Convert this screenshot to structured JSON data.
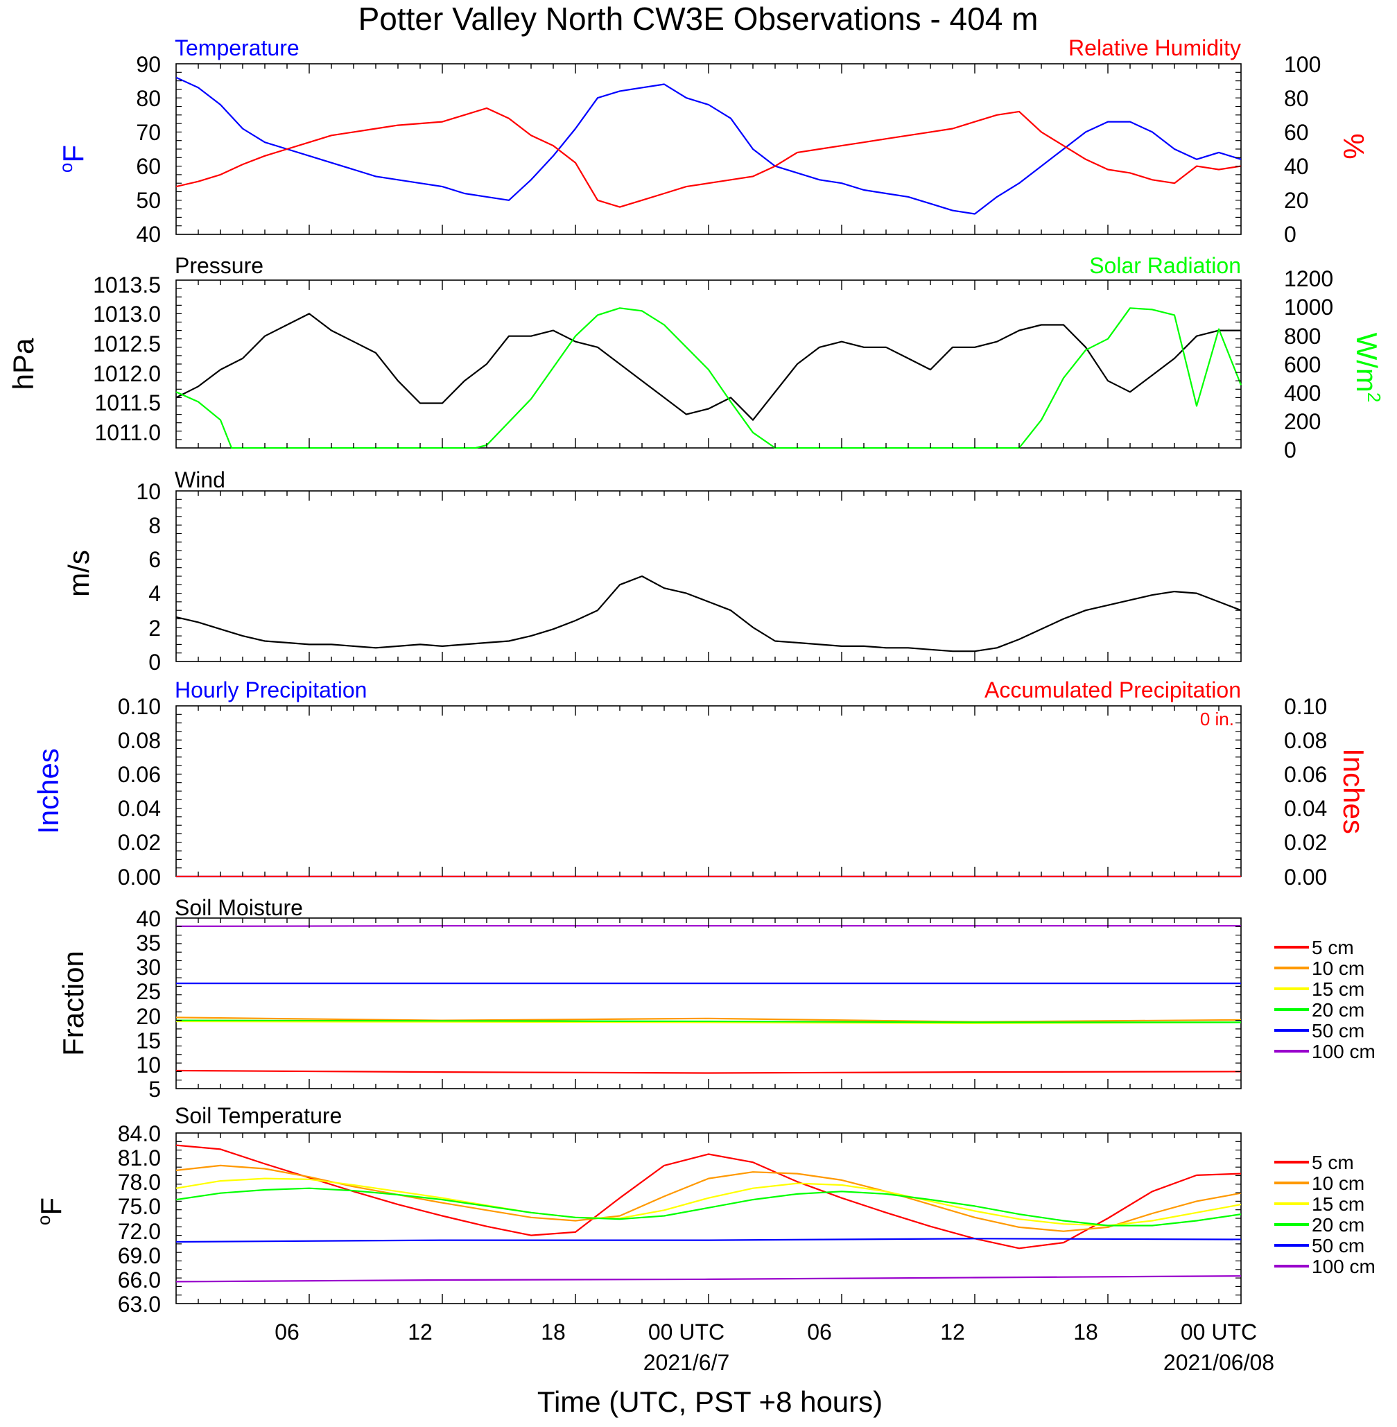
{
  "title": "Potter Valley North CW3E Observations - 404 m",
  "x_axis": {
    "title": "Time (UTC, PST +8 hours)",
    "range_hours": [
      0,
      48
    ],
    "tick_labels": [
      "06",
      "12",
      "18",
      "00 UTC",
      "06",
      "12",
      "18",
      "00 UTC"
    ],
    "date_labels": [
      "2021/6/7",
      "2021/06/08"
    ]
  },
  "colors": {
    "blue": "#0000ff",
    "red": "#ff0000",
    "green": "#00ff00",
    "black": "#000000",
    "orange": "#ff9900",
    "yellow": "#ffff00",
    "purple": "#9900cc"
  },
  "panels": {
    "temp_rh": {
      "left_title": "Temperature",
      "right_title": "Relative Humidity",
      "left_units": "oF",
      "right_units": "%",
      "left_ticks": [
        "90",
        "80",
        "70",
        "60",
        "50",
        "40"
      ],
      "right_ticks": [
        "100",
        "80",
        "60",
        "40",
        "20",
        "0"
      ]
    },
    "pressure": {
      "left_title": "Pressure",
      "right_title": "Solar Radiation",
      "left_units": "hPa",
      "right_units": "W/m2",
      "left_ticks": [
        "1013.5",
        "1013.0",
        "1012.5",
        "1012.0",
        "1011.5",
        "1011.0"
      ],
      "right_ticks": [
        "1200",
        "1000",
        "800",
        "600",
        "400",
        "200",
        "0"
      ]
    },
    "wind": {
      "left_title": "Wind",
      "left_units": "m/s",
      "left_ticks": [
        "10",
        "8",
        "6",
        "4",
        "2",
        "0"
      ]
    },
    "precip": {
      "left_title": "Hourly Precipitation",
      "right_title": "Accumulated Precipitation",
      "accum_label": "0 in.",
      "left_units": "Inches",
      "right_units": "Inches",
      "left_ticks": [
        "0.10",
        "0.08",
        "0.06",
        "0.04",
        "0.02",
        "0.00"
      ],
      "right_ticks": [
        "0.10",
        "0.08",
        "0.06",
        "0.04",
        "0.02",
        "0.00"
      ]
    },
    "soil_moisture": {
      "left_title": "Soil Moisture",
      "left_units": "Fraction",
      "left_ticks": [
        "40",
        "35",
        "30",
        "25",
        "20",
        "15",
        "10",
        "5"
      ]
    },
    "soil_temp": {
      "left_title": "Soil Temperature",
      "left_units": "oF",
      "left_ticks": [
        "84.0",
        "81.0",
        "78.0",
        "75.0",
        "72.0",
        "69.0",
        "66.0",
        "63.0"
      ]
    }
  },
  "chart_data": [
    {
      "type": "line",
      "title": "Temperature / Relative Humidity",
      "ylim_left": [
        40,
        90
      ],
      "ylim_right": [
        0,
        100
      ],
      "series": [
        {
          "name": "Temperature",
          "axis": "left",
          "color": "#0000ff",
          "x": [
            0,
            1,
            2,
            3,
            4,
            5,
            6,
            7,
            8,
            9,
            10,
            11,
            12,
            13,
            14,
            15,
            16,
            17,
            18,
            19,
            20,
            21,
            22,
            23,
            24,
            25,
            26,
            27,
            28,
            29,
            30,
            31,
            32,
            33,
            34,
            35,
            36,
            37,
            38,
            39,
            40,
            41,
            42,
            43,
            44,
            45,
            46,
            47,
            48
          ],
          "y": [
            86,
            83,
            78,
            71,
            67,
            65,
            63,
            61,
            59,
            57,
            56,
            55,
            54,
            52,
            51,
            50,
            56,
            63,
            71,
            80,
            82,
            83,
            84,
            80,
            78,
            74,
            65,
            60,
            58,
            56,
            55,
            53,
            52,
            51,
            49,
            47,
            46,
            51,
            55,
            60,
            65,
            70,
            73,
            73,
            70,
            65,
            62,
            64,
            62
          ]
        },
        {
          "name": "Relative Humidity",
          "axis": "right",
          "color": "#ff0000",
          "x": [
            0,
            1,
            2,
            3,
            4,
            5,
            6,
            7,
            8,
            9,
            10,
            11,
            12,
            13,
            14,
            15,
            16,
            17,
            18,
            19,
            20,
            21,
            22,
            23,
            24,
            25,
            26,
            27,
            28,
            29,
            30,
            31,
            32,
            33,
            34,
            35,
            36,
            37,
            38,
            39,
            40,
            41,
            42,
            43,
            44,
            45,
            46,
            47,
            48
          ],
          "y": [
            28,
            31,
            35,
            41,
            46,
            50,
            54,
            58,
            60,
            62,
            64,
            65,
            66,
            70,
            74,
            68,
            58,
            52,
            42,
            20,
            16,
            20,
            24,
            28,
            30,
            32,
            34,
            40,
            48,
            50,
            52,
            54,
            56,
            58,
            60,
            62,
            66,
            70,
            72,
            60,
            52,
            44,
            38,
            36,
            32,
            30,
            40,
            38,
            40
          ]
        }
      ]
    },
    {
      "type": "line",
      "title": "Pressure / Solar Radiation",
      "ylim_left": [
        1010.8,
        1013.8
      ],
      "ylim_right": [
        0,
        1200
      ],
      "series": [
        {
          "name": "Pressure",
          "axis": "left",
          "color": "#000000",
          "x": [
            0,
            1,
            2,
            3,
            4,
            5,
            6,
            7,
            8,
            9,
            10,
            11,
            12,
            13,
            14,
            15,
            16,
            17,
            18,
            19,
            20,
            21,
            22,
            23,
            24,
            25,
            26,
            27,
            28,
            29,
            30,
            31,
            32,
            33,
            34,
            35,
            36,
            37,
            38,
            39,
            40,
            41,
            42,
            43,
            44,
            45,
            46,
            47,
            48
          ],
          "y": [
            1011.7,
            1011.9,
            1012.2,
            1012.4,
            1012.8,
            1013.0,
            1013.2,
            1012.9,
            1012.7,
            1012.5,
            1012.0,
            1011.6,
            1011.6,
            1012.0,
            1012.3,
            1012.8,
            1012.8,
            1012.9,
            1012.7,
            1012.6,
            1012.3,
            1012.0,
            1011.7,
            1011.4,
            1011.5,
            1011.7,
            1011.3,
            1011.8,
            1012.3,
            1012.6,
            1012.7,
            1012.6,
            1012.6,
            1012.4,
            1012.2,
            1012.6,
            1012.6,
            1012.7,
            1012.9,
            1013.0,
            1013.0,
            1012.6,
            1012.0,
            1011.8,
            1012.1,
            1012.4,
            1012.8,
            1012.9,
            1012.9
          ]
        },
        {
          "name": "Solar Radiation",
          "axis": "right",
          "color": "#00ff00",
          "x": [
            0,
            1,
            2,
            2.5,
            13.5,
            14,
            16,
            18,
            19,
            20,
            21,
            22,
            24,
            25,
            26,
            27,
            38,
            39,
            40,
            41,
            42,
            43,
            44,
            45,
            46,
            47,
            48
          ],
          "y": [
            400,
            330,
            200,
            0,
            0,
            20,
            350,
            800,
            950,
            1000,
            980,
            880,
            560,
            330,
            110,
            0,
            0,
            200,
            500,
            700,
            780,
            1000,
            990,
            950,
            300,
            850,
            450
          ]
        }
      ]
    },
    {
      "type": "line",
      "title": "Wind",
      "ylim": [
        0,
        10
      ],
      "series": [
        {
          "name": "Wind speed",
          "color": "#000000",
          "x": [
            0,
            1,
            2,
            3,
            4,
            5,
            6,
            7,
            8,
            9,
            10,
            11,
            12,
            13,
            14,
            15,
            16,
            17,
            18,
            19,
            20,
            21,
            22,
            23,
            24,
            25,
            26,
            27,
            28,
            29,
            30,
            31,
            32,
            33,
            34,
            35,
            36,
            37,
            38,
            39,
            40,
            41,
            42,
            43,
            44,
            45,
            46,
            47,
            48
          ],
          "y": [
            2.6,
            2.3,
            1.9,
            1.5,
            1.2,
            1.1,
            1.0,
            1.0,
            0.9,
            0.8,
            0.9,
            1.0,
            0.9,
            1.0,
            1.1,
            1.2,
            1.5,
            1.9,
            2.4,
            3.0,
            4.5,
            5.0,
            4.3,
            4.0,
            3.5,
            3.0,
            2.0,
            1.2,
            1.1,
            1.0,
            0.9,
            0.9,
            0.8,
            0.8,
            0.7,
            0.6,
            0.6,
            0.8,
            1.3,
            1.9,
            2.5,
            3.0,
            3.3,
            3.6,
            3.9,
            4.1,
            4.0,
            3.5,
            3.0
          ]
        }
      ]
    },
    {
      "type": "line",
      "title": "Hourly / Accumulated Precipitation",
      "ylim": [
        0,
        0.1
      ],
      "series": [
        {
          "name": "Hourly Precipitation",
          "color": "#0000ff",
          "x": [
            0,
            48
          ],
          "y": [
            0,
            0
          ]
        },
        {
          "name": "Accumulated Precipitation",
          "color": "#ff0000",
          "x": [
            0,
            48
          ],
          "y": [
            0,
            0
          ]
        }
      ]
    },
    {
      "type": "line",
      "title": "Soil Moisture",
      "ylim": [
        5,
        40
      ],
      "series": [
        {
          "name": "5 cm",
          "color": "#ff0000",
          "x": [
            0,
            12,
            24,
            36,
            48
          ],
          "y": [
            8.7,
            8.4,
            8.2,
            8.4,
            8.5
          ]
        },
        {
          "name": "10 cm",
          "color": "#ff9900",
          "x": [
            0,
            12,
            24,
            36,
            48
          ],
          "y": [
            19.6,
            19.0,
            19.4,
            18.7,
            19.1
          ]
        },
        {
          "name": "15 cm",
          "color": "#ffff00",
          "x": [
            0,
            12,
            24,
            36,
            48
          ],
          "y": [
            18.8,
            18.7,
            18.6,
            18.4,
            18.6
          ]
        },
        {
          "name": "20 cm",
          "color": "#00ff00",
          "x": [
            0,
            12,
            24,
            36,
            48
          ],
          "y": [
            19.0,
            18.9,
            18.8,
            18.6,
            18.6
          ]
        },
        {
          "name": "50 cm",
          "color": "#0000ff",
          "x": [
            0,
            12,
            24,
            36,
            48
          ],
          "y": [
            26.6,
            26.6,
            26.6,
            26.6,
            26.6
          ]
        },
        {
          "name": "100 cm",
          "color": "#9900cc",
          "x": [
            0,
            12,
            24,
            36,
            48
          ],
          "y": [
            38.3,
            38.4,
            38.4,
            38.4,
            38.4
          ]
        }
      ]
    },
    {
      "type": "line",
      "title": "Soil Temperature",
      "ylim": [
        63,
        84
      ],
      "series": [
        {
          "name": "5 cm",
          "color": "#ff0000",
          "x": [
            0,
            2,
            4,
            6,
            8,
            10,
            12,
            14,
            16,
            18,
            20,
            22,
            24,
            26,
            28,
            30,
            32,
            34,
            36,
            38,
            40,
            42,
            44,
            46,
            48
          ],
          "y": [
            82.5,
            82,
            80.2,
            78.5,
            76.8,
            75.2,
            73.8,
            72.5,
            71.4,
            71.8,
            76,
            80,
            81.4,
            80.4,
            78,
            76,
            74.2,
            72.5,
            71,
            69.8,
            70.5,
            73.5,
            76.8,
            78.8,
            79
          ]
        },
        {
          "name": "10 cm",
          "color": "#ff9900",
          "x": [
            0,
            2,
            4,
            6,
            8,
            10,
            12,
            14,
            16,
            18,
            20,
            22,
            24,
            26,
            28,
            30,
            32,
            34,
            36,
            38,
            40,
            42,
            44,
            46,
            48
          ],
          "y": [
            79.4,
            80,
            79.6,
            78.6,
            77.4,
            76.4,
            75.4,
            74.5,
            73.6,
            73.2,
            73.8,
            76.2,
            78.4,
            79.2,
            79,
            78.2,
            76.8,
            75.2,
            73.6,
            72.4,
            71.9,
            72.4,
            74.1,
            75.6,
            76.6
          ]
        },
        {
          "name": "15 cm",
          "color": "#ffff00",
          "x": [
            0,
            2,
            4,
            6,
            8,
            10,
            12,
            14,
            16,
            18,
            20,
            22,
            24,
            26,
            28,
            30,
            32,
            34,
            36,
            38,
            40,
            42,
            44,
            46,
            48
          ],
          "y": [
            77.2,
            78.1,
            78.4,
            78.3,
            77.6,
            76.8,
            76.0,
            75.1,
            74.2,
            73.6,
            73.5,
            74.5,
            76.0,
            77.2,
            77.8,
            77.6,
            76.8,
            75.6,
            74.4,
            73.4,
            72.8,
            72.6,
            73.2,
            74.2,
            75.2
          ]
        },
        {
          "name": "20 cm",
          "color": "#00ff00",
          "x": [
            0,
            2,
            4,
            6,
            8,
            10,
            12,
            14,
            16,
            18,
            20,
            22,
            24,
            26,
            28,
            30,
            32,
            34,
            36,
            38,
            40,
            42,
            44,
            46,
            48
          ],
          "y": [
            75.8,
            76.6,
            77.0,
            77.2,
            76.9,
            76.4,
            75.8,
            75.0,
            74.2,
            73.6,
            73.4,
            73.8,
            74.8,
            75.8,
            76.5,
            76.8,
            76.5,
            75.8,
            75.0,
            74.0,
            73.2,
            72.6,
            72.6,
            73.2,
            74.0
          ]
        },
        {
          "name": "50 cm",
          "color": "#0000ff",
          "x": [
            0,
            12,
            24,
            36,
            48
          ],
          "y": [
            70.6,
            70.8,
            70.8,
            71.0,
            70.9
          ]
        },
        {
          "name": "100 cm",
          "color": "#9900cc",
          "x": [
            0,
            12,
            24,
            36,
            48
          ],
          "y": [
            65.7,
            65.9,
            66.0,
            66.2,
            66.4
          ]
        }
      ]
    }
  ]
}
